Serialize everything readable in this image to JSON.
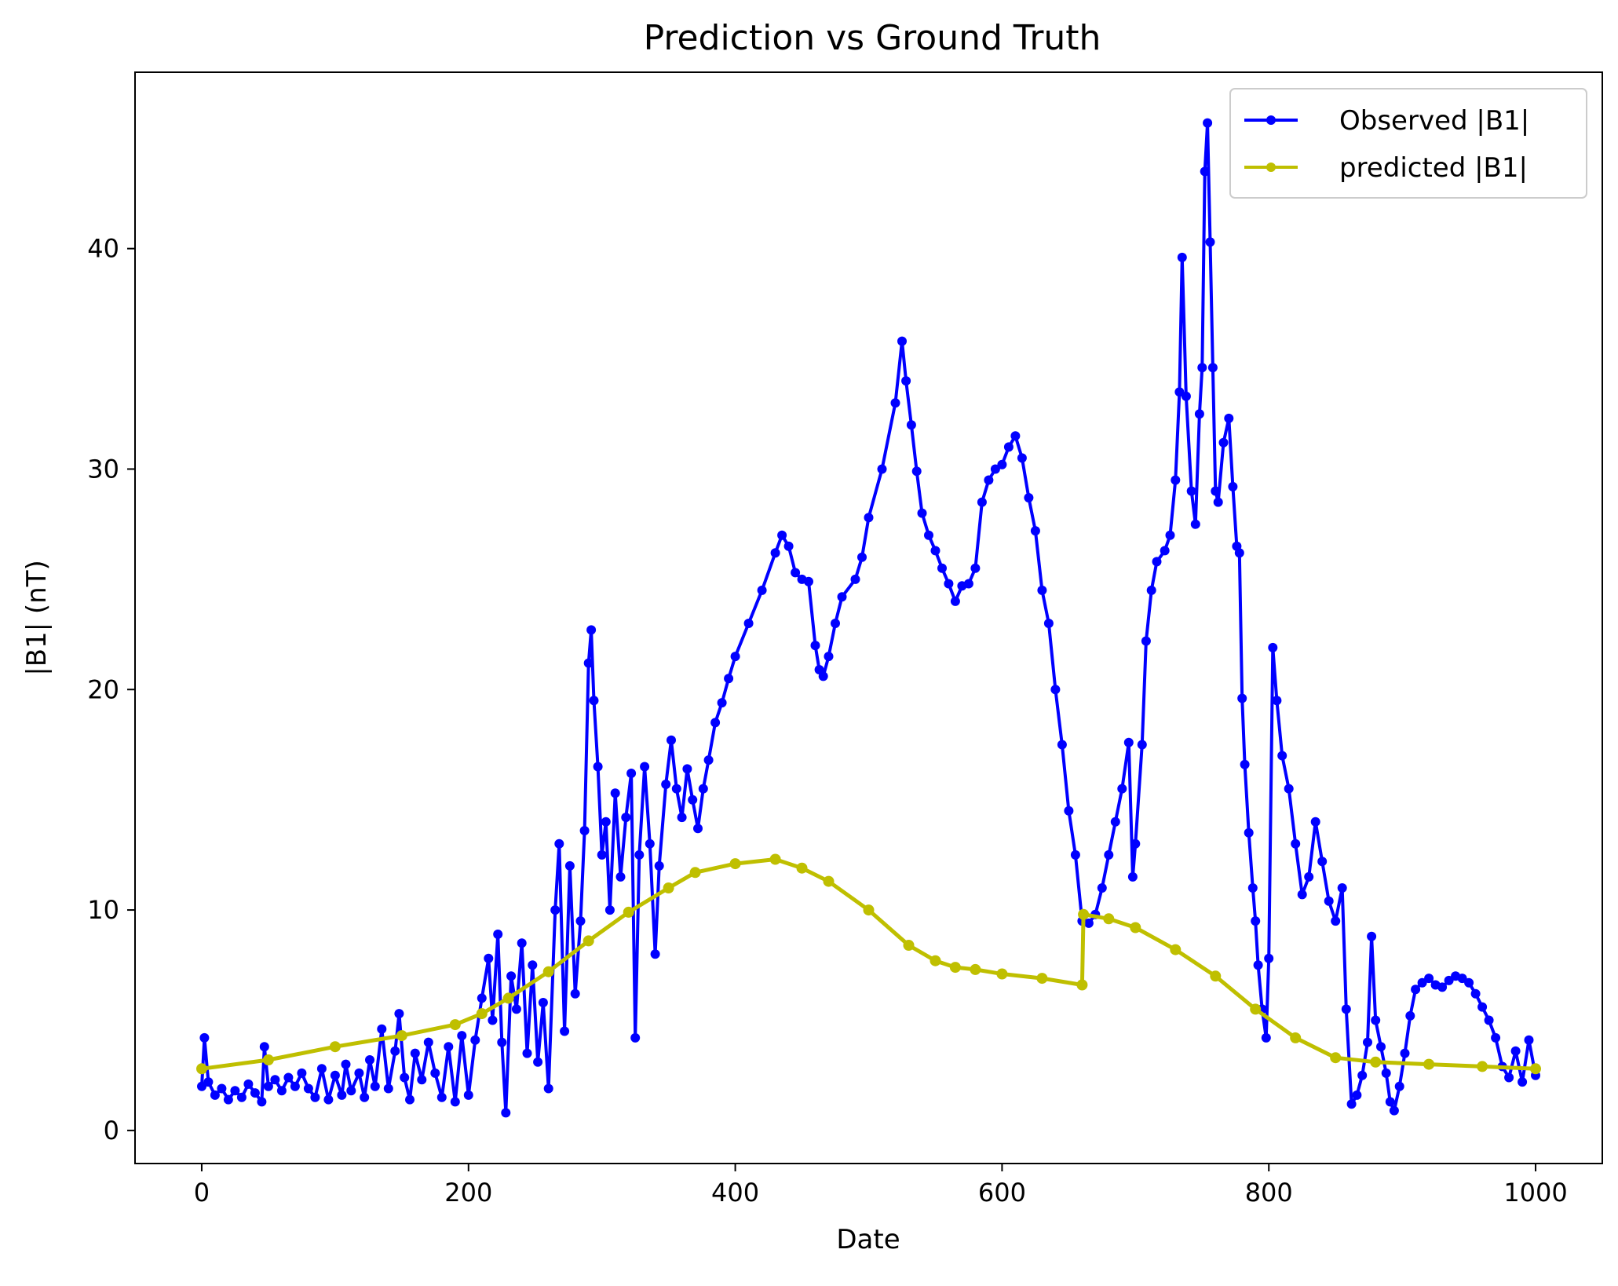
{
  "chart_data": {
    "type": "line",
    "title": "Prediction vs Ground Truth",
    "xlabel": "Date",
    "ylabel": "|B1| (nT)",
    "xlim": [
      -50,
      1050
    ],
    "ylim": [
      -1.5,
      48
    ],
    "xticks": [
      0,
      200,
      400,
      600,
      800,
      1000
    ],
    "yticks": [
      0,
      10,
      20,
      30,
      40
    ],
    "grid": false,
    "legend_position": "upper right",
    "markers": "dot",
    "series": [
      {
        "name": "Observed |B1|",
        "color": "#0000ff",
        "points": [
          [
            0,
            2.0
          ],
          [
            2,
            4.2
          ],
          [
            5,
            2.2
          ],
          [
            10,
            1.6
          ],
          [
            15,
            1.9
          ],
          [
            20,
            1.4
          ],
          [
            25,
            1.8
          ],
          [
            30,
            1.5
          ],
          [
            35,
            2.1
          ],
          [
            40,
            1.7
          ],
          [
            45,
            1.3
          ],
          [
            47,
            3.8
          ],
          [
            50,
            2.0
          ],
          [
            55,
            2.3
          ],
          [
            60,
            1.8
          ],
          [
            65,
            2.4
          ],
          [
            70,
            2.0
          ],
          [
            75,
            2.6
          ],
          [
            80,
            1.9
          ],
          [
            85,
            1.5
          ],
          [
            90,
            2.8
          ],
          [
            95,
            1.4
          ],
          [
            100,
            2.5
          ],
          [
            105,
            1.6
          ],
          [
            108,
            3.0
          ],
          [
            112,
            1.8
          ],
          [
            118,
            2.6
          ],
          [
            122,
            1.5
          ],
          [
            126,
            3.2
          ],
          [
            130,
            2.0
          ],
          [
            135,
            4.6
          ],
          [
            140,
            1.9
          ],
          [
            145,
            3.6
          ],
          [
            148,
            5.3
          ],
          [
            152,
            2.4
          ],
          [
            156,
            1.4
          ],
          [
            160,
            3.5
          ],
          [
            165,
            2.3
          ],
          [
            170,
            4.0
          ],
          [
            175,
            2.6
          ],
          [
            180,
            1.5
          ],
          [
            185,
            3.8
          ],
          [
            190,
            1.3
          ],
          [
            195,
            4.3
          ],
          [
            200,
            1.6
          ],
          [
            205,
            4.1
          ],
          [
            210,
            6.0
          ],
          [
            215,
            7.8
          ],
          [
            218,
            5.0
          ],
          [
            222,
            8.9
          ],
          [
            225,
            4.0
          ],
          [
            228,
            0.8
          ],
          [
            232,
            7.0
          ],
          [
            236,
            5.5
          ],
          [
            240,
            8.5
          ],
          [
            244,
            3.5
          ],
          [
            248,
            7.5
          ],
          [
            252,
            3.1
          ],
          [
            256,
            5.8
          ],
          [
            260,
            1.9
          ],
          [
            265,
            10.0
          ],
          [
            268,
            13.0
          ],
          [
            272,
            4.5
          ],
          [
            276,
            12.0
          ],
          [
            280,
            6.2
          ],
          [
            284,
            9.5
          ],
          [
            287,
            13.6
          ],
          [
            290,
            21.2
          ],
          [
            292,
            22.7
          ],
          [
            294,
            19.5
          ],
          [
            297,
            16.5
          ],
          [
            300,
            12.5
          ],
          [
            303,
            14.0
          ],
          [
            306,
            10.0
          ],
          [
            310,
            15.3
          ],
          [
            314,
            11.5
          ],
          [
            318,
            14.2
          ],
          [
            322,
            16.2
          ],
          [
            325,
            4.2
          ],
          [
            328,
            12.5
          ],
          [
            332,
            16.5
          ],
          [
            336,
            13.0
          ],
          [
            340,
            8.0
          ],
          [
            343,
            12.0
          ],
          [
            348,
            15.7
          ],
          [
            352,
            17.7
          ],
          [
            356,
            15.5
          ],
          [
            360,
            14.2
          ],
          [
            364,
            16.4
          ],
          [
            368,
            15.0
          ],
          [
            372,
            13.7
          ],
          [
            376,
            15.5
          ],
          [
            380,
            16.8
          ],
          [
            385,
            18.5
          ],
          [
            390,
            19.4
          ],
          [
            395,
            20.5
          ],
          [
            400,
            21.5
          ],
          [
            410,
            23.0
          ],
          [
            420,
            24.5
          ],
          [
            430,
            26.2
          ],
          [
            435,
            27.0
          ],
          [
            440,
            26.5
          ],
          [
            445,
            25.3
          ],
          [
            450,
            25.0
          ],
          [
            455,
            24.9
          ],
          [
            460,
            22.0
          ],
          [
            463,
            20.9
          ],
          [
            466,
            20.6
          ],
          [
            470,
            21.5
          ],
          [
            475,
            23.0
          ],
          [
            480,
            24.2
          ],
          [
            490,
            25.0
          ],
          [
            495,
            26.0
          ],
          [
            500,
            27.8
          ],
          [
            510,
            30.0
          ],
          [
            520,
            33.0
          ],
          [
            525,
            35.8
          ],
          [
            528,
            34.0
          ],
          [
            532,
            32.0
          ],
          [
            536,
            29.9
          ],
          [
            540,
            28.0
          ],
          [
            545,
            27.0
          ],
          [
            550,
            26.3
          ],
          [
            555,
            25.5
          ],
          [
            560,
            24.8
          ],
          [
            565,
            24.0
          ],
          [
            570,
            24.7
          ],
          [
            575,
            24.8
          ],
          [
            580,
            25.5
          ],
          [
            585,
            28.5
          ],
          [
            590,
            29.5
          ],
          [
            595,
            30.0
          ],
          [
            600,
            30.2
          ],
          [
            605,
            31.0
          ],
          [
            610,
            31.5
          ],
          [
            615,
            30.5
          ],
          [
            620,
            28.7
          ],
          [
            625,
            27.2
          ],
          [
            630,
            24.5
          ],
          [
            635,
            23.0
          ],
          [
            640,
            20.0
          ],
          [
            645,
            17.5
          ],
          [
            650,
            14.5
          ],
          [
            655,
            12.5
          ],
          [
            660,
            9.5
          ],
          [
            665,
            9.4
          ],
          [
            670,
            9.8
          ],
          [
            675,
            11.0
          ],
          [
            680,
            12.5
          ],
          [
            685,
            14.0
          ],
          [
            690,
            15.5
          ],
          [
            695,
            17.6
          ],
          [
            698,
            11.5
          ],
          [
            700,
            13.0
          ],
          [
            705,
            17.5
          ],
          [
            708,
            22.2
          ],
          [
            712,
            24.5
          ],
          [
            716,
            25.8
          ],
          [
            722,
            26.3
          ],
          [
            726,
            27.0
          ],
          [
            730,
            29.5
          ],
          [
            733,
            33.5
          ],
          [
            735,
            39.6
          ],
          [
            738,
            33.3
          ],
          [
            742,
            29.0
          ],
          [
            745,
            27.5
          ],
          [
            748,
            32.5
          ],
          [
            750,
            34.6
          ],
          [
            752,
            43.5
          ],
          [
            754,
            45.7
          ],
          [
            756,
            40.3
          ],
          [
            758,
            34.6
          ],
          [
            760,
            29.0
          ],
          [
            762,
            28.5
          ],
          [
            766,
            31.2
          ],
          [
            770,
            32.3
          ],
          [
            773,
            29.2
          ],
          [
            776,
            26.5
          ],
          [
            778,
            26.2
          ],
          [
            780,
            19.6
          ],
          [
            782,
            16.6
          ],
          [
            785,
            13.5
          ],
          [
            788,
            11.0
          ],
          [
            790,
            9.5
          ],
          [
            792,
            7.5
          ],
          [
            795,
            5.5
          ],
          [
            798,
            4.2
          ],
          [
            800,
            7.8
          ],
          [
            803,
            21.9
          ],
          [
            806,
            19.5
          ],
          [
            810,
            17.0
          ],
          [
            815,
            15.5
          ],
          [
            820,
            13.0
          ],
          [
            825,
            10.7
          ],
          [
            830,
            11.5
          ],
          [
            835,
            14.0
          ],
          [
            840,
            12.2
          ],
          [
            845,
            10.4
          ],
          [
            850,
            9.5
          ],
          [
            855,
            11.0
          ],
          [
            858,
            5.5
          ],
          [
            862,
            1.2
          ],
          [
            866,
            1.6
          ],
          [
            870,
            2.5
          ],
          [
            874,
            4.0
          ],
          [
            877,
            8.8
          ],
          [
            880,
            5.0
          ],
          [
            884,
            3.8
          ],
          [
            888,
            2.6
          ],
          [
            891,
            1.3
          ],
          [
            894,
            0.9
          ],
          [
            898,
            2.0
          ],
          [
            902,
            3.5
          ],
          [
            906,
            5.2
          ],
          [
            910,
            6.4
          ],
          [
            915,
            6.7
          ],
          [
            920,
            6.9
          ],
          [
            925,
            6.6
          ],
          [
            930,
            6.5
          ],
          [
            935,
            6.8
          ],
          [
            940,
            7.0
          ],
          [
            945,
            6.9
          ],
          [
            950,
            6.7
          ],
          [
            955,
            6.2
          ],
          [
            960,
            5.6
          ],
          [
            965,
            5.0
          ],
          [
            970,
            4.2
          ],
          [
            975,
            2.9
          ],
          [
            980,
            2.4
          ],
          [
            985,
            3.6
          ],
          [
            990,
            2.2
          ],
          [
            995,
            4.1
          ],
          [
            1000,
            2.5
          ]
        ]
      },
      {
        "name": "predicted |B1|",
        "color": "#bfbf00",
        "points": [
          [
            0,
            2.8
          ],
          [
            50,
            3.2
          ],
          [
            100,
            3.8
          ],
          [
            150,
            4.3
          ],
          [
            190,
            4.8
          ],
          [
            210,
            5.3
          ],
          [
            230,
            6.0
          ],
          [
            260,
            7.2
          ],
          [
            290,
            8.6
          ],
          [
            320,
            9.9
          ],
          [
            350,
            11.0
          ],
          [
            370,
            11.7
          ],
          [
            400,
            12.1
          ],
          [
            430,
            12.3
          ],
          [
            450,
            11.9
          ],
          [
            470,
            11.3
          ],
          [
            500,
            10.0
          ],
          [
            530,
            8.4
          ],
          [
            550,
            7.7
          ],
          [
            565,
            7.4
          ],
          [
            580,
            7.3
          ],
          [
            600,
            7.1
          ],
          [
            630,
            6.9
          ],
          [
            660,
            6.6
          ],
          [
            661,
            9.8
          ],
          [
            680,
            9.6
          ],
          [
            700,
            9.2
          ],
          [
            730,
            8.2
          ],
          [
            760,
            7.0
          ],
          [
            790,
            5.5
          ],
          [
            820,
            4.2
          ],
          [
            850,
            3.3
          ],
          [
            880,
            3.1
          ],
          [
            920,
            3.0
          ],
          [
            960,
            2.9
          ],
          [
            1000,
            2.8
          ]
        ]
      }
    ]
  }
}
